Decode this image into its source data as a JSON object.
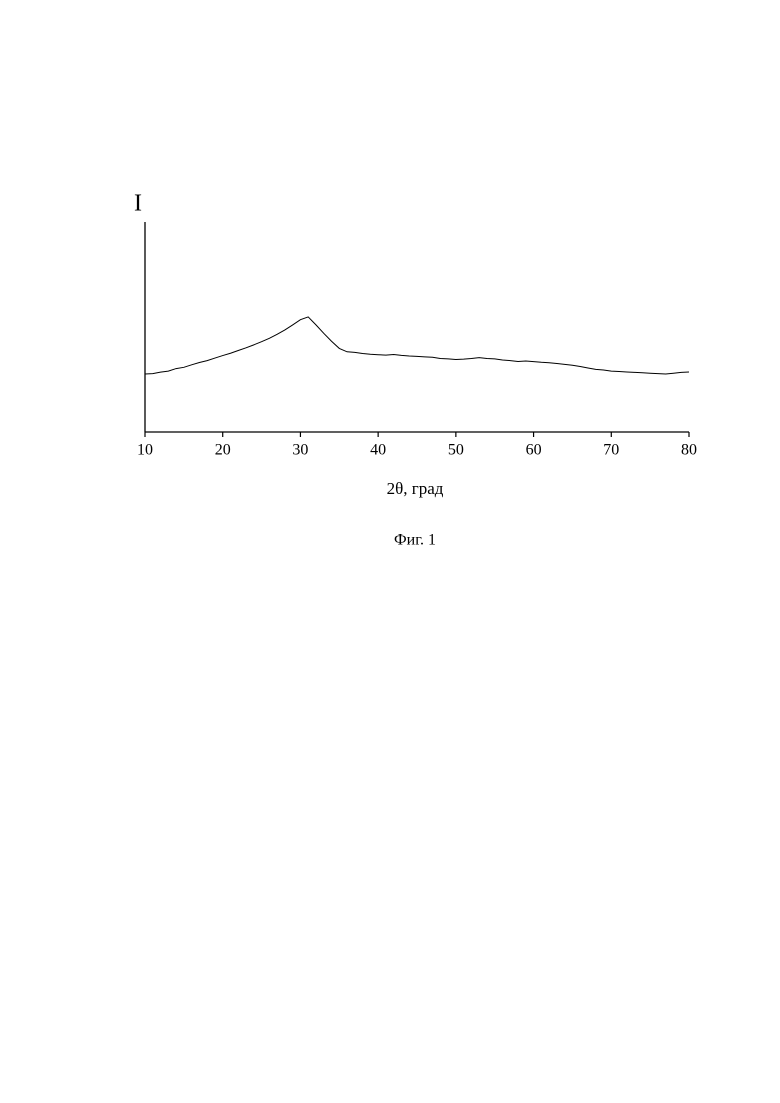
{
  "chart_data": {
    "type": "line",
    "ylabel": "I",
    "xlabel": "2θ, град",
    "caption": "Фиг. 1",
    "x": [
      10,
      11,
      12,
      13,
      14,
      15,
      16,
      17,
      18,
      19,
      20,
      21,
      22,
      23,
      24,
      25,
      26,
      27,
      28,
      29,
      30,
      31,
      32,
      33,
      34,
      35,
      36,
      37,
      38,
      39,
      40,
      41,
      42,
      43,
      44,
      45,
      46,
      47,
      48,
      49,
      50,
      51,
      52,
      53,
      54,
      55,
      56,
      57,
      58,
      59,
      60,
      61,
      62,
      63,
      64,
      65,
      66,
      67,
      68,
      69,
      70,
      71,
      72,
      73,
      74,
      75,
      76,
      77,
      78,
      79,
      80
    ],
    "series": [
      {
        "color": "#000000",
        "values": [
          27.6,
          27.8,
          28.5,
          29.0,
          30.2,
          30.8,
          32.0,
          33.1,
          34.0,
          35.2,
          36.4,
          37.5,
          38.8,
          40.1,
          41.5,
          43.0,
          44.6,
          46.5,
          48.6,
          51.0,
          53.5,
          54.8,
          51.0,
          47.0,
          43.2,
          39.8,
          38.2,
          37.9,
          37.4,
          37.0,
          36.8,
          36.6,
          36.9,
          36.5,
          36.2,
          36.0,
          35.8,
          35.6,
          35.0,
          34.8,
          34.5,
          34.7,
          35.0,
          35.4,
          35.0,
          34.8,
          34.3,
          34.0,
          33.6,
          33.8,
          33.5,
          33.2,
          33.0,
          32.6,
          32.2,
          31.8,
          31.2,
          30.5,
          29.8,
          29.5,
          29.0,
          28.8,
          28.6,
          28.4,
          28.2,
          28.0,
          27.8,
          27.6,
          28.0,
          28.4,
          28.6
        ]
      }
    ],
    "xlim": [
      10,
      80
    ],
    "xticks": [
      10,
      20,
      30,
      40,
      50,
      60,
      70,
      80
    ],
    "ylim": [
      0,
      100
    ]
  }
}
